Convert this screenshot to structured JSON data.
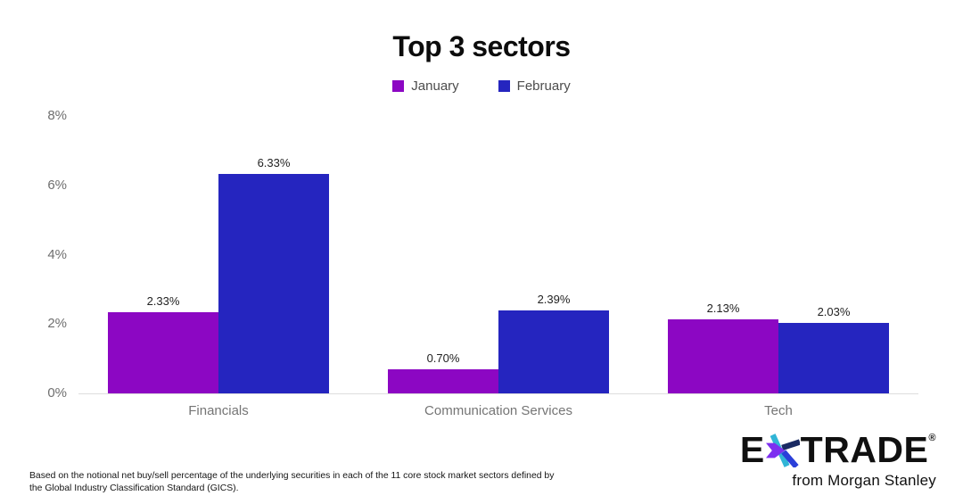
{
  "title": "Top 3 sectors",
  "legend": [
    {
      "label": "January",
      "color": "#8c07c3"
    },
    {
      "label": "February",
      "color": "#2525bf"
    }
  ],
  "chart_data": {
    "type": "bar",
    "title": "Top 3 sectors",
    "categories": [
      "Financials",
      "Communication Services",
      "Tech"
    ],
    "series": [
      {
        "name": "January",
        "color": "#8c07c3",
        "values": [
          2.33,
          0.7,
          2.13
        ]
      },
      {
        "name": "February",
        "color": "#2525bf",
        "values": [
          6.33,
          2.39,
          2.03
        ]
      }
    ],
    "value_labels": [
      [
        "2.33%",
        "0.70%",
        "2.13%"
      ],
      [
        "6.33%",
        "2.39%",
        "2.03%"
      ]
    ],
    "yticks": [
      "0%",
      "2%",
      "4%",
      "6%",
      "8%"
    ],
    "ylim": [
      0,
      8
    ],
    "xlabel": "",
    "ylabel": "",
    "grid": false,
    "legend_position": "top-center"
  },
  "footnote": {
    "line1": "Based on the notional net buy/sell percentage of the underlying securities in each of the 11 core stock market sectors defined by",
    "line2": "the Global Industry Classification Standard (GICS)."
  },
  "logo": {
    "wordmark_left": "E",
    "wordmark_right": "TRADE",
    "registered": "®",
    "tagline": "from Morgan Stanley",
    "text_color": "#101010",
    "asterisk_colors": {
      "purple": "#7d2ff0",
      "teal": "#31b5d6",
      "royal": "#2b3fd9",
      "navy": "#1a2a63"
    }
  }
}
